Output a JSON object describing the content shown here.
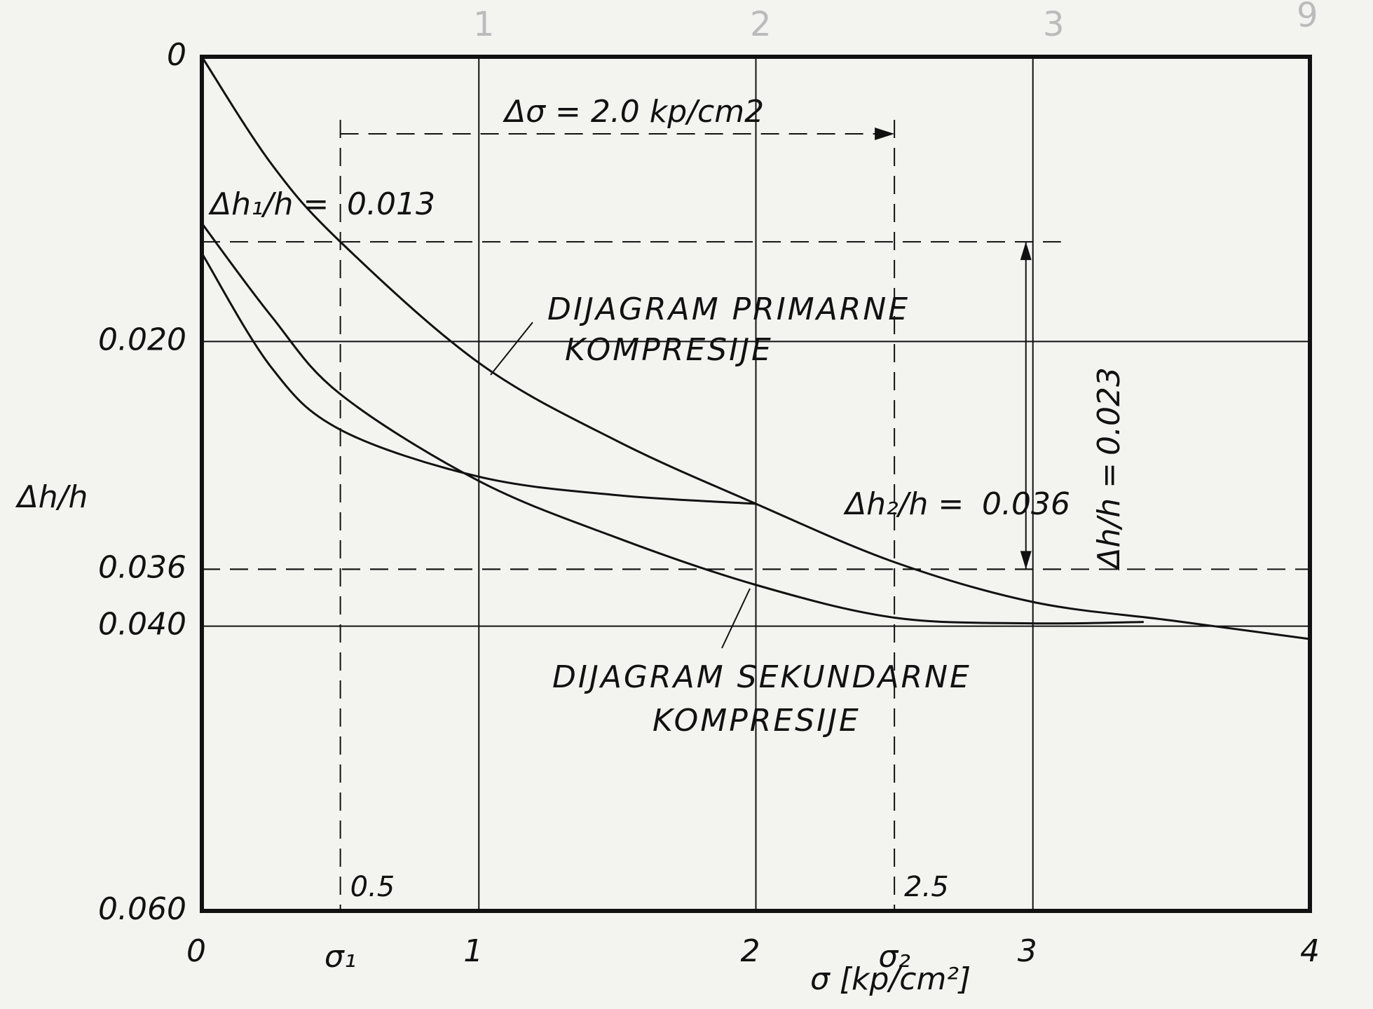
{
  "chart_data": {
    "type": "line",
    "x_label": "σ [kp/cm²]",
    "y_label": "Δh/h",
    "xlim": [
      0,
      4
    ],
    "ylim": [
      0.06,
      0
    ],
    "xticks": [
      0,
      1,
      2,
      3,
      4
    ],
    "yticks": [
      0,
      {
        "value": 0.02,
        "label": "0.020"
      },
      0.036,
      {
        "value": 0.04,
        "label": "0.040"
      },
      {
        "value": 0.06,
        "label": "0.060"
      }
    ],
    "grid": true,
    "color": "#111111",
    "series": [
      {
        "x": [
          0,
          0.25,
          0.5,
          1,
          1.5,
          2,
          2.5,
          3,
          3.5,
          4
        ],
        "values": [
          0,
          0.0075,
          0.013,
          0.0215,
          0.027,
          0.0314,
          0.0355,
          0.0383,
          0.0396,
          0.0409
        ]
      },
      {
        "x": [
          0,
          0.25,
          0.5,
          1,
          1.5,
          2,
          2.5,
          3,
          3.4
        ],
        "values": [
          0.0117,
          0.0182,
          0.0237,
          0.0298,
          0.0338,
          0.0371,
          0.0394,
          0.0398,
          0.0397
        ]
      },
      {
        "x": [
          0,
          0.25,
          0.5,
          1,
          1.5,
          2
        ],
        "values": [
          0.0138,
          0.0218,
          0.0262,
          0.0295,
          0.0308,
          0.0314
        ]
      }
    ],
    "sigma_marks": [
      {
        "value": 0.5,
        "label": "σ₁"
      },
      {
        "value": 2.5,
        "label": "σ₂"
      }
    ],
    "annotations": {
      "delta_sigma": "Δσ = 2.0 kp/cm2",
      "dh1": {
        "label": "Δh₁/h =",
        "value": 0.013
      },
      "dh2": {
        "label": "Δh₂/h =",
        "value": 0.036
      },
      "dh": {
        "label": "Δh/h =",
        "value": 0.023
      },
      "primary": [
        "DIJAGRAM PRIMARNE",
        "KOMPRESIJE"
      ],
      "secondary": [
        "DIJAGRAM SEKUNDARNE",
        "KOMPRESIJE"
      ]
    },
    "pencil_marks": [
      "1",
      "2",
      "3",
      "9"
    ]
  }
}
